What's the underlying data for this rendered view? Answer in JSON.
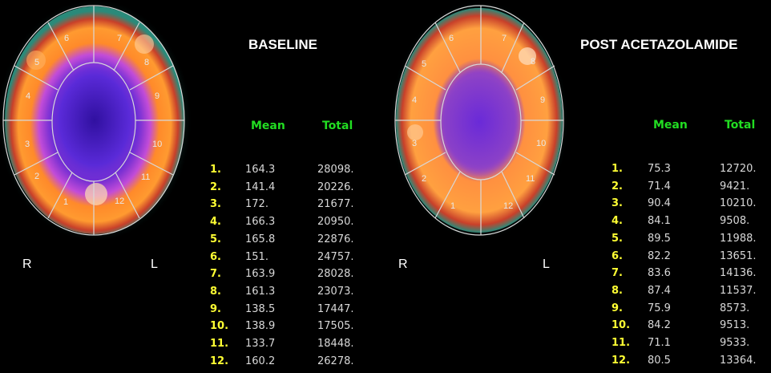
{
  "colors": {
    "background": "#000000",
    "header_text": "#22dd22",
    "index_text": "#ffff33",
    "value_text": "#d8d8d8",
    "title_text": "#ffffff"
  },
  "panels": [
    {
      "title": "BASELINE",
      "orientation": {
        "left": "R",
        "right": "L"
      },
      "headers": {
        "mean": "Mean",
        "total": "Total"
      },
      "segment_labels": [
        "1",
        "2",
        "3",
        "4",
        "5",
        "6",
        "7",
        "8",
        "9",
        "10",
        "11",
        "12"
      ],
      "rows": [
        {
          "index": "1.",
          "mean": "164.3",
          "total": "28098."
        },
        {
          "index": "2.",
          "mean": "141.4",
          "total": "20226."
        },
        {
          "index": "3.",
          "mean": "172.",
          "total": "21677."
        },
        {
          "index": "4.",
          "mean": "166.3",
          "total": "20950."
        },
        {
          "index": "5.",
          "mean": "165.8",
          "total": "22876."
        },
        {
          "index": "6.",
          "mean": "151.",
          "total": "24757."
        },
        {
          "index": "7.",
          "mean": "163.9",
          "total": "28028."
        },
        {
          "index": "8.",
          "mean": "161.3",
          "total": "23073."
        },
        {
          "index": "9.",
          "mean": "138.5",
          "total": "17447."
        },
        {
          "index": "10.",
          "mean": "138.9",
          "total": "17505."
        },
        {
          "index": "11.",
          "mean": "133.7",
          "total": "18448."
        },
        {
          "index": "12.",
          "mean": "160.2",
          "total": "26278."
        }
      ]
    },
    {
      "title": "POST ACETAZOLAMIDE",
      "orientation": {
        "left": "R",
        "right": "L"
      },
      "headers": {
        "mean": "Mean",
        "total": "Total"
      },
      "segment_labels": [
        "1",
        "2",
        "3",
        "4",
        "5",
        "6",
        "7",
        "8",
        "9",
        "10",
        "11",
        "12"
      ],
      "rows": [
        {
          "index": "1.",
          "mean": "75.3",
          "total": "12720."
        },
        {
          "index": "2.",
          "mean": "71.4",
          "total": "9421."
        },
        {
          "index": "3.",
          "mean": "90.4",
          "total": "10210."
        },
        {
          "index": "4.",
          "mean": "84.1",
          "total": "9508."
        },
        {
          "index": "5.",
          "mean": "89.5",
          "total": "11988."
        },
        {
          "index": "6.",
          "mean": "82.2",
          "total": "13651."
        },
        {
          "index": "7.",
          "mean": "83.6",
          "total": "14136."
        },
        {
          "index": "8.",
          "mean": "87.4",
          "total": "11537."
        },
        {
          "index": "9.",
          "mean": "75.9",
          "total": "8573."
        },
        {
          "index": "10.",
          "mean": "84.2",
          "total": "9513."
        },
        {
          "index": "11.",
          "mean": "71.1",
          "total": "9533."
        },
        {
          "index": "12.",
          "mean": "80.5",
          "total": "13364."
        }
      ]
    }
  ]
}
